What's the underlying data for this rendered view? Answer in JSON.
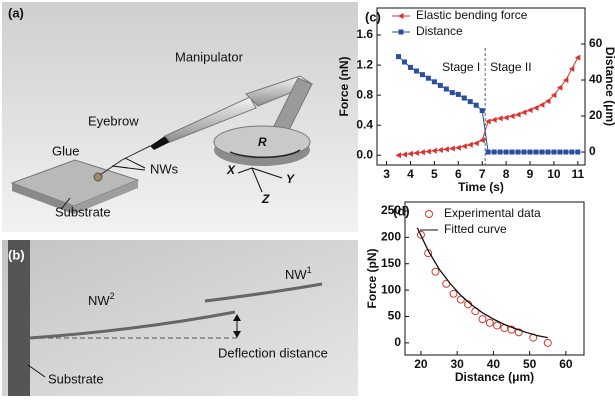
{
  "panel_a": {
    "label": "(a)",
    "manipulator": "Manipulator",
    "eyebrow": "Eyebrow",
    "glue": "Glue",
    "nws": "NWs",
    "substrate": "Substrate",
    "r": "R",
    "x": "X",
    "y": "Y",
    "z": "Z"
  },
  "panel_b": {
    "label": "(b)",
    "nw1": {
      "text": "NW",
      "sup": "1"
    },
    "nw2": {
      "text": "NW",
      "sup": "2"
    },
    "deflection": "Deflection distance",
    "substrate": "Substrate"
  },
  "chart_data": [
    {
      "type": "line",
      "label": "(c)",
      "xlabel": "Time (s)",
      "ylabel": "Force (nN)",
      "y2label": "Distance (μm)",
      "annotations": [
        "Stage I",
        "Stage II"
      ],
      "x": [
        3.5,
        3.75,
        4,
        4.25,
        4.5,
        4.75,
        5,
        5.25,
        5.5,
        5.75,
        6,
        6.25,
        6.5,
        6.75,
        7,
        7.25,
        7.5,
        7.75,
        8,
        8.25,
        8.5,
        8.75,
        9,
        9.25,
        9.5,
        9.75,
        10,
        10.25,
        10.5,
        10.75,
        11
      ],
      "series": [
        {
          "name": "Elastic bending force",
          "color": "#d9342b",
          "marker": "triangle-left",
          "style": "line-markers",
          "values": [
            0.0,
            0.01,
            0.02,
            0.03,
            0.04,
            0.05,
            0.06,
            0.07,
            0.08,
            0.09,
            0.1,
            0.12,
            0.14,
            0.16,
            0.2,
            0.45,
            0.47,
            0.49,
            0.5,
            0.52,
            0.54,
            0.57,
            0.6,
            0.63,
            0.67,
            0.72,
            0.8,
            0.9,
            1.0,
            1.15,
            1.3
          ]
        },
        {
          "name": "Distance",
          "color": "#2a4ea0",
          "marker": "square",
          "style": "line-markers",
          "axis": "y2",
          "values": [
            53,
            50,
            47,
            45,
            43,
            41,
            39,
            37,
            35,
            33,
            32,
            30,
            28,
            26,
            23,
            0,
            0,
            0,
            0,
            0,
            0,
            0,
            0,
            0,
            0,
            0,
            0,
            0,
            0,
            0,
            0
          ]
        }
      ],
      "xlim": [
        2.6,
        11.3
      ],
      "xticks": [
        3,
        4,
        5,
        6,
        7,
        8,
        9,
        10,
        11
      ],
      "ylim": [
        -0.13,
        1.96
      ],
      "yticks": [
        {
          "value": 0,
          "label": "0.0"
        },
        0.4,
        0.8,
        1.2,
        1.6
      ],
      "y2lim": [
        -7.2,
        80
      ],
      "y2ticks": [
        0,
        20,
        40,
        60
      ],
      "legend": "top-left"
    },
    {
      "type": "scatter",
      "label": "(d)",
      "xlabel": "Distance (μm)",
      "ylabel": "Force (pN)",
      "series": [
        {
          "name": "Experimental data",
          "color": "#d9342b",
          "marker": "circle",
          "style": "markers",
          "x": [
            20,
            22,
            24,
            27,
            29,
            31,
            33,
            35,
            37,
            39,
            41,
            43,
            45,
            47,
            51,
            55
          ],
          "values": [
            205,
            170,
            135,
            112,
            93,
            82,
            73,
            60,
            45,
            38,
            33,
            28,
            25,
            20,
            10,
            0
          ]
        },
        {
          "name": "Fitted curve",
          "color": "#111111",
          "style": "line",
          "x": [
            19,
            22,
            25,
            28,
            31,
            34,
            37,
            40,
            43,
            46,
            49,
            52,
            55
          ],
          "values": [
            218,
            175,
            140,
            113,
            90,
            72,
            57,
            45,
            35,
            27,
            20,
            14,
            10
          ]
        }
      ],
      "xlim": [
        15.6,
        65
      ],
      "xticks": [
        20,
        30,
        40,
        50,
        60
      ],
      "ylim": [
        -23,
        267
      ],
      "yticks": [
        0,
        50,
        100,
        150,
        200,
        250
      ],
      "legend": "top-left"
    }
  ]
}
